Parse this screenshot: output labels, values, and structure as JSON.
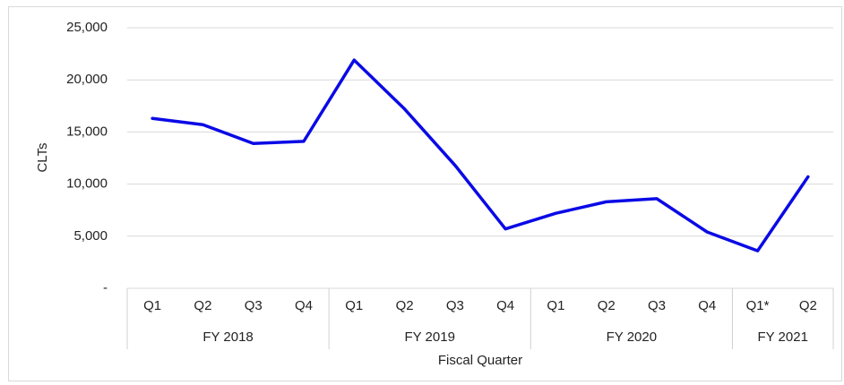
{
  "chart_data": {
    "type": "line",
    "y_label": "CLTs",
    "x_label": "Fiscal Quarter",
    "groups": [
      {
        "name": "FY 2018",
        "categories": [
          "Q1",
          "Q2",
          "Q3",
          "Q4"
        ]
      },
      {
        "name": "FY 2019",
        "categories": [
          "Q1",
          "Q2",
          "Q3",
          "Q4"
        ]
      },
      {
        "name": "FY 2020",
        "categories": [
          "Q1",
          "Q2",
          "Q3",
          "Q4"
        ]
      },
      {
        "name": "FY 2021",
        "categories": [
          "Q1*",
          "Q2"
        ]
      }
    ],
    "values": [
      16300,
      15700,
      13900,
      14100,
      21900,
      17200,
      11800,
      5700,
      7200,
      8300,
      8600,
      5400,
      3600,
      10700
    ],
    "color": "#0a0ae6",
    "ylim": [
      0,
      25000
    ],
    "yticks": [
      {
        "value": 0,
        "label": "-"
      },
      {
        "value": 5000,
        "label": "5,000"
      },
      {
        "value": 10000,
        "label": "10,000"
      },
      {
        "value": 15000,
        "label": "15,000"
      },
      {
        "value": 20000,
        "label": "20,000"
      },
      {
        "value": 25000,
        "label": "25,000"
      }
    ],
    "grid": true
  }
}
